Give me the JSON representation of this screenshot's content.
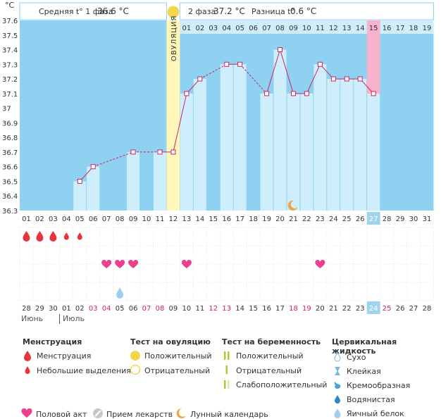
{
  "header": {
    "phase1_label": "Средняя t° 1 фаза",
    "phase1_value": "36.6 °C",
    "phase2_label": "2 фаза",
    "phase2_value": "37.2 °C",
    "diff_label": "Разница t°",
    "diff_value": "0.6 °C",
    "unit": "°C",
    "ovulation_label": "ОВУЛЯЦИЯ"
  },
  "colors": {
    "blue": "#8ed1f0",
    "bar": "#cfeefc",
    "ovulation": "#fff7b8",
    "ovulation_marker": "#f5d64a",
    "pink": "#f7b3cc",
    "line": "#d0245e",
    "today": "#9fd4ec"
  },
  "chart_data": {
    "type": "line",
    "title": "",
    "ylabel": "°C",
    "ylim": [
      36.3,
      37.6
    ],
    "yticks": [
      36.3,
      36.4,
      36.5,
      36.6,
      36.7,
      36.8,
      36.9,
      37,
      37.1,
      37.2,
      37.3,
      37.4,
      37.5,
      37.6
    ],
    "cycle_days": [
      "01",
      "02",
      "03",
      "04",
      "05",
      "06",
      "07",
      "08",
      "09",
      "10",
      "11",
      "12",
      "13",
      "14",
      "15",
      "16",
      "17",
      "18",
      "19",
      "20",
      "21",
      "22",
      "23",
      "24",
      "25",
      "26",
      "27",
      "28",
      "29",
      "30",
      "31"
    ],
    "post_ovulation_days": [
      "01",
      "02",
      "03",
      "04",
      "05",
      "06",
      "07",
      "08",
      "09",
      "10",
      "11",
      "12",
      "13",
      "14",
      "15",
      "16",
      "17",
      "18",
      "19"
    ],
    "temperatures": [
      null,
      null,
      null,
      null,
      36.5,
      36.6,
      null,
      null,
      36.7,
      null,
      36.7,
      36.7,
      37.1,
      37.2,
      null,
      37.3,
      37.3,
      null,
      37.1,
      37.4,
      37.1,
      37.1,
      37.3,
      37.2,
      37.2,
      37.2,
      37.1,
      null,
      null,
      null,
      null
    ],
    "ovulation_day": 12,
    "highlight_day": 27,
    "moon_day": 21,
    "menstruation": [
      2,
      2,
      2,
      1,
      1,
      0,
      0,
      0,
      0,
      0,
      0,
      0,
      0,
      0,
      0,
      0,
      0,
      0,
      0,
      0,
      0,
      0,
      0,
      0,
      0,
      0,
      0,
      0,
      0,
      0,
      0
    ],
    "intercourse_days": [
      7,
      8,
      9,
      13,
      23
    ],
    "cervical_day": 8,
    "calendar_dates": [
      "28",
      "29",
      "30",
      "01",
      "02",
      "03",
      "04",
      "05",
      "06",
      "07",
      "08",
      "09",
      "10",
      "11",
      "12",
      "13",
      "14",
      "15",
      "16",
      "17",
      "18",
      "19",
      "20",
      "21",
      "22",
      "23",
      "24",
      "25",
      "26",
      "27",
      "28"
    ],
    "calendar_red": [
      6,
      7,
      10,
      11,
      15,
      16,
      21,
      22,
      28
    ],
    "months": [
      "Июнь",
      "Июль"
    ]
  },
  "legend": {
    "menstruation": {
      "title": "Менструация",
      "items": [
        "Менструация",
        "Небольшие выделения"
      ]
    },
    "ovulation_test": {
      "title": "Тест на овуляцию",
      "items": [
        "Положительный",
        "Отрицательный"
      ]
    },
    "pregnancy_test": {
      "title": "Тест на беременность",
      "items": [
        "Положительный",
        "Отрицательный",
        "Слабоположительный"
      ]
    },
    "cervical": {
      "title": "Цервикальная жидкость",
      "items": [
        "Сухо",
        "Клейкая",
        "Кремообразная",
        "Водянистая",
        "Яичный белок"
      ]
    },
    "bottom": [
      "Половой акт",
      "Прием лекарств",
      "Лунный календарь"
    ]
  }
}
